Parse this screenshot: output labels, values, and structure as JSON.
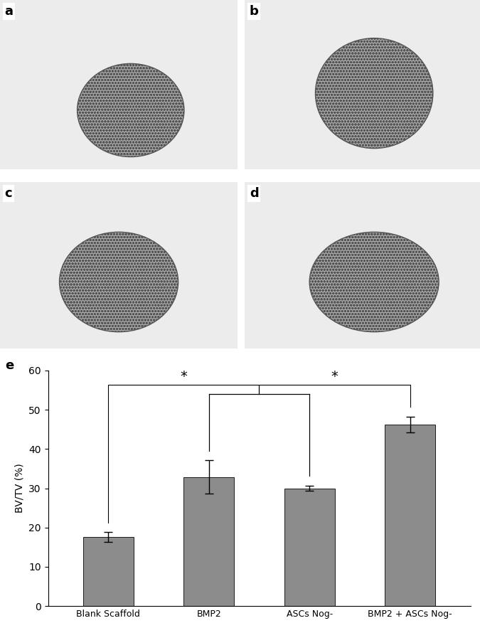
{
  "panels": {
    "labels": [
      "a",
      "b",
      "c",
      "d"
    ]
  },
  "chart_data": {
    "type": "bar",
    "panel_label": "e",
    "y_label": "BV/TV (%)",
    "categories": [
      "Blank Scaffold",
      "BMP2",
      "ASCs Nog-",
      "BMP2 + ASCs Nog-"
    ],
    "values": [
      17.6,
      32.9,
      30.0,
      46.3
    ],
    "errors": [
      1.3,
      4.2,
      0.7,
      2.0
    ],
    "color": "#8c8c8c",
    "ylim": [
      0,
      60
    ],
    "yticks": [
      0,
      10,
      20,
      30,
      40,
      50,
      60
    ],
    "grid": false,
    "significance": [
      {
        "left": [
          "Blank Scaffold"
        ],
        "right": [
          "BMP2",
          "ASCs Nog-"
        ],
        "label": "*"
      },
      {
        "left": [
          "BMP2",
          "ASCs Nog-"
        ],
        "right": [
          "BMP2 + ASCs Nog-"
        ],
        "label": "*"
      }
    ]
  }
}
